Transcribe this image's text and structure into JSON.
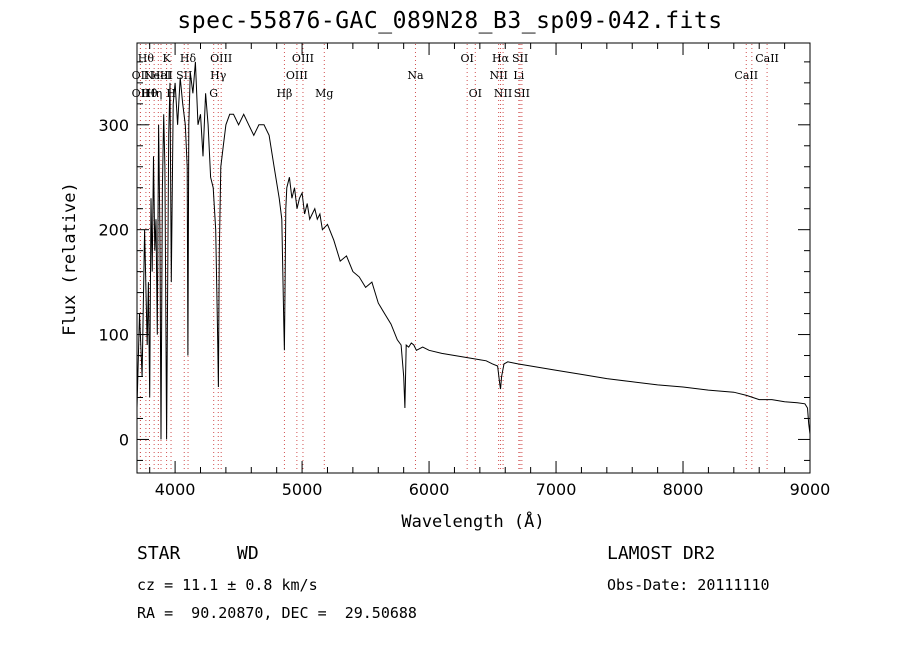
{
  "title": "spec-55876-GAC_089N28_B3_sp09-042.fits",
  "footer": {
    "class": "STAR",
    "subclass": "WD",
    "survey": "LAMOST DR2",
    "cz": "cz = 11.1 ± 0.8 km/s",
    "obs_date": "Obs-Date: 20111110",
    "coords": "RA =  90.20870, DEC =  29.50688"
  },
  "chart_data": {
    "type": "line",
    "title": "spec-55876-GAC_089N28_B3_sp09-042.fits",
    "xlabel": "Wavelength (Å)",
    "ylabel": "Flux (relative)",
    "xlim": [
      3700,
      9000
    ],
    "ylim": [
      -32,
      378
    ],
    "xticks": [
      4000,
      5000,
      6000,
      7000,
      8000,
      9000
    ],
    "yticks": [
      0,
      100,
      200,
      300
    ],
    "series": [
      {
        "color": "#000000",
        "x": [
          3700,
          3720,
          3740,
          3760,
          3780,
          3790,
          3800,
          3810,
          3820,
          3830,
          3840,
          3850,
          3860,
          3870,
          3880,
          3889,
          3900,
          3910,
          3920,
          3933,
          3950,
          3960,
          3970,
          3985,
          4000,
          4020,
          4040,
          4060,
          4080,
          4095,
          4101,
          4108,
          4120,
          4140,
          4160,
          4180,
          4200,
          4220,
          4240,
          4260,
          4280,
          4300,
          4320,
          4335,
          4341,
          4348,
          4360,
          4380,
          4400,
          4430,
          4460,
          4500,
          4540,
          4580,
          4620,
          4660,
          4700,
          4740,
          4780,
          4820,
          4840,
          4850,
          4856,
          4861,
          4866,
          4872,
          4880,
          4900,
          4920,
          4940,
          4960,
          4980,
          5000,
          5020,
          5040,
          5060,
          5080,
          5100,
          5120,
          5140,
          5160,
          5200,
          5250,
          5300,
          5350,
          5400,
          5450,
          5500,
          5550,
          5600,
          5650,
          5700,
          5750,
          5780,
          5800,
          5810,
          5820,
          5840,
          5860,
          5880,
          5900,
          5950,
          6000,
          6100,
          6200,
          6300,
          6400,
          6450,
          6500,
          6540,
          6555,
          6563,
          6571,
          6590,
          6620,
          6700,
          6800,
          6900,
          7000,
          7200,
          7400,
          7600,
          7800,
          8000,
          8200,
          8400,
          8500,
          8550,
          8600,
          8700,
          8800,
          8900,
          8960,
          8980,
          8990,
          9000
        ],
        "y": [
          30,
          120,
          60,
          200,
          90,
          150,
          40,
          230,
          160,
          270,
          180,
          210,
          100,
          300,
          200,
          0,
          240,
          310,
          260,
          0,
          290,
          340,
          150,
          320,
          340,
          300,
          345,
          320,
          300,
          260,
          80,
          300,
          350,
          330,
          360,
          300,
          310,
          270,
          330,
          300,
          250,
          240,
          200,
          100,
          50,
          180,
          260,
          280,
          300,
          310,
          310,
          300,
          310,
          300,
          290,
          300,
          300,
          290,
          260,
          230,
          210,
          150,
          110,
          85,
          150,
          220,
          240,
          250,
          230,
          240,
          220,
          230,
          235,
          215,
          225,
          210,
          215,
          220,
          210,
          215,
          200,
          205,
          190,
          170,
          175,
          160,
          155,
          145,
          150,
          130,
          120,
          110,
          95,
          90,
          60,
          30,
          90,
          88,
          92,
          90,
          85,
          88,
          85,
          82,
          80,
          78,
          76,
          75,
          72,
          70,
          55,
          48,
          60,
          72,
          74,
          72,
          70,
          68,
          66,
          62,
          58,
          55,
          52,
          50,
          47,
          45,
          42,
          40,
          38,
          38,
          36,
          35,
          34,
          30,
          15,
          5
        ]
      }
    ],
    "spectral_lines": [
      {
        "x": 3727,
        "label": "OII",
        "row": 2
      },
      {
        "x": 3727,
        "label": "OII",
        "row": 3
      },
      {
        "x": 3770,
        "label": "Hθ",
        "row": 1
      },
      {
        "x": 3798,
        "label": "Hθ",
        "row": 3
      },
      {
        "x": 3835,
        "label": "Hη",
        "row": 3
      },
      {
        "x": 3868,
        "label": "NeIII",
        "row": 2
      },
      {
        "x": 3889,
        "label": "HeI",
        "row": 2
      },
      {
        "x": 3933,
        "label": "K",
        "row": 1
      },
      {
        "x": 3968,
        "label": "H",
        "row": 3
      },
      {
        "x": 4072,
        "label": "SII",
        "row": 2
      },
      {
        "x": 4102,
        "label": "Hδ",
        "row": 1
      },
      {
        "x": 4304,
        "label": "G",
        "row": 3
      },
      {
        "x": 4340,
        "label": "Hγ",
        "row": 2
      },
      {
        "x": 4363,
        "label": "OIII",
        "row": 1
      },
      {
        "x": 4861,
        "label": "Hβ",
        "row": 3
      },
      {
        "x": 4959,
        "label": "OIII",
        "row": 2
      },
      {
        "x": 5007,
        "label": "OIII",
        "row": 1
      },
      {
        "x": 5175,
        "label": "Mg",
        "row": 3
      },
      {
        "x": 5893,
        "label": "Na",
        "row": 2
      },
      {
        "x": 6300,
        "label": "OI",
        "row": 1
      },
      {
        "x": 6364,
        "label": "OI",
        "row": 3
      },
      {
        "x": 6548,
        "label": "NII",
        "row": 2
      },
      {
        "x": 6563,
        "label": "Hα",
        "row": 1
      },
      {
        "x": 6583,
        "label": "NII",
        "row": 3
      },
      {
        "x": 6707,
        "label": "Li",
        "row": 2
      },
      {
        "x": 6717,
        "label": "SII",
        "row": 1
      },
      {
        "x": 6731,
        "label": "SII",
        "row": 3
      },
      {
        "x": 8498,
        "label": "CaII",
        "row": 2
      },
      {
        "x": 8542,
        "label": "",
        "row": 0
      },
      {
        "x": 8662,
        "label": "CaII",
        "row": 1
      }
    ],
    "grid": false,
    "line_marker_color": "#d05050"
  }
}
